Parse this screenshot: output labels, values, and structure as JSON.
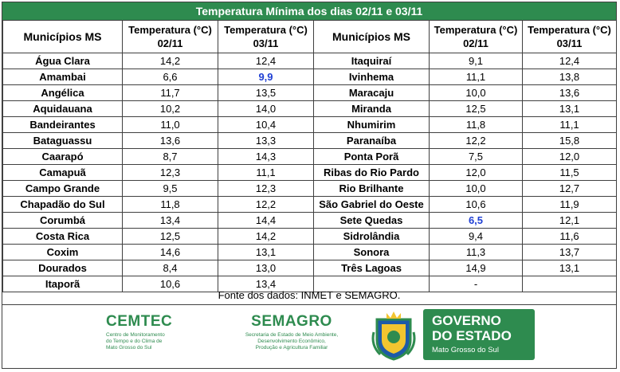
{
  "title": "Temperatura Mínima dos dias 02/11 e 03/11",
  "headers": {
    "municipios": "Municípios MS",
    "temp_0211": "Temperatura (°C) 02/11",
    "temp_0311": "Temperatura (°C) 03/11"
  },
  "rows": [
    {
      "left": [
        "Água Clara",
        "14,2",
        "12,4"
      ],
      "right": [
        "Itaquiraí",
        "9,1",
        "12,4"
      ]
    },
    {
      "left": [
        "Amambai",
        "6,6",
        "9,9"
      ],
      "right": [
        "Ivinhema",
        "11,1",
        "13,8"
      ]
    },
    {
      "left": [
        "Angélica",
        "11,7",
        "13,5"
      ],
      "right": [
        "Maracaju",
        "10,0",
        "13,6"
      ]
    },
    {
      "left": [
        "Aquidauana",
        "10,2",
        "14,0"
      ],
      "right": [
        "Miranda",
        "12,5",
        "13,1"
      ]
    },
    {
      "left": [
        "Bandeirantes",
        "11,0",
        "10,4"
      ],
      "right": [
        "Nhumirim",
        "11,8",
        "11,1"
      ]
    },
    {
      "left": [
        "Bataguassu",
        "13,6",
        "13,3"
      ],
      "right": [
        "Paranaíba",
        "12,2",
        "15,8"
      ]
    },
    {
      "left": [
        "Caarapó",
        "8,7",
        "14,3"
      ],
      "right": [
        "Ponta Porã",
        "7,5",
        "12,0"
      ]
    },
    {
      "left": [
        "Camapuã",
        "12,3",
        "11,1"
      ],
      "right": [
        "Ribas do Rio Pardo",
        "12,0",
        "11,5"
      ]
    },
    {
      "left": [
        "Campo Grande",
        "9,5",
        "12,3"
      ],
      "right": [
        "Rio Brilhante",
        "10,0",
        "12,7"
      ]
    },
    {
      "left": [
        "Chapadão do Sul",
        "11,8",
        "12,2"
      ],
      "right": [
        "São Gabriel do Oeste",
        "10,6",
        "11,9"
      ]
    },
    {
      "left": [
        "Corumbá",
        "13,4",
        "14,4"
      ],
      "right": [
        "Sete Quedas",
        "6,5",
        "12,1"
      ]
    },
    {
      "left": [
        "Costa Rica",
        "12,5",
        "14,2"
      ],
      "right": [
        "Sidrolândia",
        "9,4",
        "11,6"
      ]
    },
    {
      "left": [
        "Coxim",
        "14,6",
        "13,1"
      ],
      "right": [
        "Sonora",
        "11,3",
        "13,7"
      ]
    },
    {
      "left": [
        "Dourados",
        "8,4",
        "13,0"
      ],
      "right": [
        "Três Lagoas",
        "14,9",
        "13,1"
      ]
    },
    {
      "left": [
        "Itaporã",
        "10,6",
        "13,4"
      ],
      "right": [
        "",
        "-",
        ""
      ]
    }
  ],
  "source": "Fonte dos dados: INMET e SEMAGRO.",
  "logos": {
    "cemtec_name": "CEMTEC",
    "cemtec_desc_1": "Centro de Monitoramento",
    "cemtec_desc_2": "do Tempo e do Clima de",
    "cemtec_desc_3": "Mato Grosso do Sul",
    "semagro_name": "SEMAGRO",
    "semagro_desc_1": "Secretaria de Estado de Meio Ambiente,",
    "semagro_desc_2": "Desenvolvimento Econômico,",
    "semagro_desc_3": "Produção e Agricultura Familiar",
    "gov_line1": "GOVERNO",
    "gov_line2": "DO ESTADO",
    "gov_line3": "Mato Grosso do Sul"
  },
  "colors": {
    "green": "#2e8b4f",
    "highlight": "#1f3fd4"
  }
}
